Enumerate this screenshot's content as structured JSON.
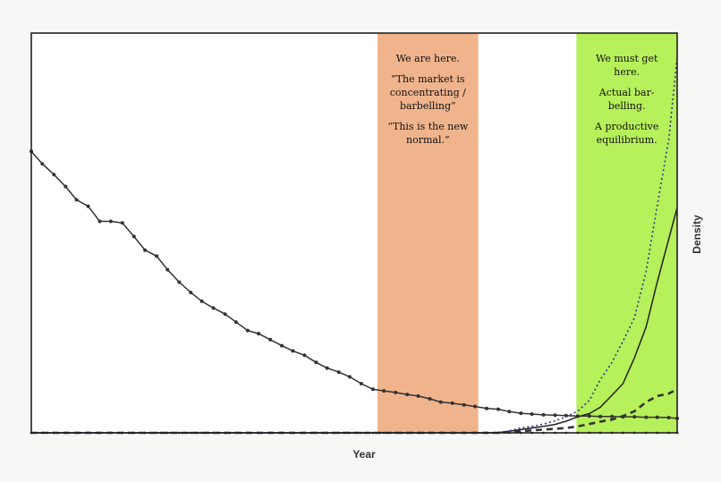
{
  "chart_data": {
    "type": "line",
    "xlabel": "Year",
    "ylabel": "Density",
    "grid": false,
    "xlim": [
      0,
      100
    ],
    "ylim": [
      0,
      100
    ],
    "x": [
      0,
      1.7,
      3.5,
      5.3,
      7,
      8.8,
      10.6,
      12.3,
      14.1,
      15.9,
      17.6,
      19.4,
      21.1,
      22.9,
      24.7,
      26.4,
      28.2,
      30,
      31.7,
      33.5,
      35.2,
      37,
      38.8,
      40.5,
      42.3,
      44.1,
      45.8,
      47.6,
      49.3,
      51.1,
      52.9,
      54.6,
      56.4,
      58.2,
      59.9,
      61.7,
      63.4,
      65.2,
      67,
      68.7,
      70.5,
      72.3,
      74,
      75.8,
      77.5,
      79.3,
      81.1,
      82.8,
      84.6,
      86.4,
      88.1,
      89.9,
      91.6,
      93.4,
      95.2,
      96.9,
      98.7,
      100
    ],
    "series": [
      {
        "values": [
          70.4,
          67.3,
          64.6,
          61.6,
          58.3,
          56.7,
          52.9,
          52.9,
          52.5,
          49.1,
          45.7,
          44.2,
          40.8,
          37.7,
          35.1,
          32.9,
          31.2,
          29.7,
          27.7,
          25.6,
          24.8,
          23.3,
          21.8,
          20.5,
          19.4,
          17.6,
          16.2,
          15.2,
          14,
          12.3,
          10.9,
          10.5,
          10.1,
          9.6,
          9.2,
          8.5,
          7.7,
          7.4,
          7.0,
          6.6,
          6.1,
          5.9,
          5.3,
          4.9,
          4.7,
          4.5,
          4.4,
          4.3,
          4.2,
          4.2,
          4.1,
          4.1,
          4.0,
          4.0,
          3.9,
          3.9,
          3.8,
          3.6
        ],
        "style": "solid-dots",
        "color": "#333333"
      },
      {
        "values": [
          0,
          0,
          0,
          0,
          0,
          0,
          0,
          0,
          0,
          0,
          0,
          0,
          0,
          0,
          0,
          0,
          0,
          0,
          0,
          0,
          0,
          0,
          0,
          0,
          0,
          0,
          0,
          0,
          0,
          0,
          0,
          0,
          0,
          0,
          0,
          0,
          0,
          0,
          0,
          0,
          0,
          0,
          0.2,
          0.4,
          0.6,
          0.8,
          1,
          1.2,
          1.6,
          2.2,
          2.8,
          3.3,
          4.2,
          5.4,
          7.7,
          9.2,
          9.8,
          10.9
        ],
        "style": "dashed",
        "color": "#333333"
      },
      {
        "values": [
          0,
          0,
          0,
          0,
          0,
          0,
          0,
          0,
          0,
          0,
          0,
          0,
          0,
          0,
          0,
          0,
          0,
          0,
          0,
          0,
          0,
          0,
          0,
          0,
          0,
          0,
          0,
          0,
          0,
          0,
          0,
          0,
          0,
          0,
          0,
          0,
          0,
          0,
          0,
          0,
          0,
          0.1,
          0.4,
          0.8,
          1.2,
          1.6,
          2.1,
          2.9,
          4.0,
          4.8,
          6.4,
          9.4,
          12.3,
          18.8,
          26.5,
          37.6,
          48.5,
          56.3
        ],
        "style": "solid",
        "color": "#222222"
      },
      {
        "values": [
          0,
          0,
          0,
          0,
          0,
          0,
          0,
          0,
          0,
          0,
          0,
          0,
          0,
          0,
          0,
          0,
          0,
          0,
          0,
          0,
          0,
          0,
          0,
          0,
          0,
          0,
          0,
          0,
          0,
          0,
          0,
          0,
          0,
          0,
          0,
          0,
          0,
          0,
          0,
          0,
          0,
          0,
          0.5,
          1.2,
          1.6,
          2.2,
          3.0,
          4.0,
          5.4,
          8.1,
          13.3,
          17.6,
          22.9,
          28.8,
          40.4,
          56.7,
          73.3,
          94.0
        ],
        "style": "dotted",
        "color": "#333399"
      }
    ],
    "bands": [
      {
        "x_start": 53.6,
        "x_end": 69.2,
        "color": "#f0b48c",
        "lines": [
          "We are here.",
          "",
          "“The market is",
          "concentrating /",
          "barbelling”",
          "",
          "“This is the new",
          "normal.”"
        ]
      },
      {
        "x_start": 84.4,
        "x_end": 100,
        "color": "#b6f05a",
        "lines": [
          "We must get",
          "here.",
          "",
          "Actual bar-",
          "belling.",
          "",
          "A productive",
          "equilibrium."
        ]
      }
    ]
  }
}
